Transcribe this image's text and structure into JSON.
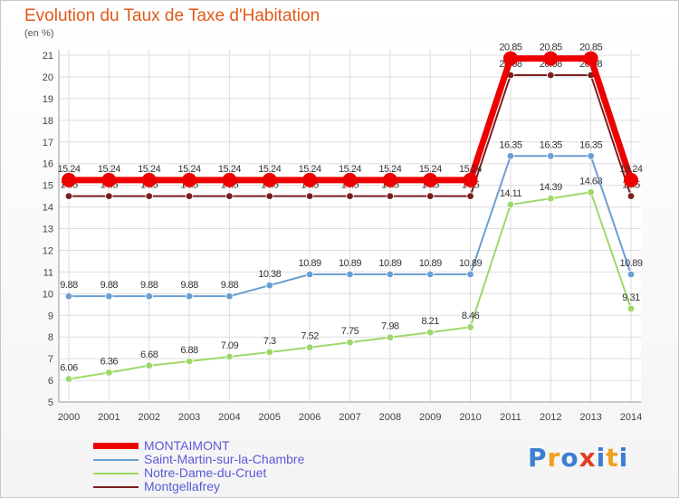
{
  "chart_data": {
    "type": "line",
    "title": "Evolution du Taux de Taxe d'Habitation",
    "unit_label": "(en %)",
    "x": [
      "2000",
      "2001",
      "2002",
      "2003",
      "2004",
      "2005",
      "2006",
      "2007",
      "2008",
      "2009",
      "2010",
      "2011",
      "2012",
      "2013",
      "2014"
    ],
    "ylim": [
      5,
      21
    ],
    "yticks": [
      5,
      6,
      7,
      8,
      9,
      10,
      11,
      12,
      13,
      14,
      15,
      16,
      17,
      18,
      19,
      20,
      21
    ],
    "grid": true,
    "legend_position": "bottom-left",
    "series": [
      {
        "name": "Montgellafrey",
        "color": "#7a1e1e",
        "values": [
          14.5,
          14.5,
          14.5,
          14.5,
          14.5,
          14.5,
          14.5,
          14.5,
          14.5,
          14.5,
          14.5,
          20.08,
          20.08,
          20.08,
          14.5
        ],
        "labels": [
          "14.5",
          "14.5",
          "14.5",
          "14.5",
          "14.5",
          "14.5",
          "14.5",
          "14.5",
          "14.5",
          "14.5",
          "14.5",
          "20.08",
          "20.08",
          "20.08",
          "14.5"
        ]
      },
      {
        "name": "Notre-Dame-du-Cruet",
        "color": "#9ed86a",
        "values": [
          6.06,
          6.36,
          6.68,
          6.88,
          7.09,
          7.3,
          7.52,
          7.75,
          7.98,
          8.21,
          8.46,
          14.11,
          14.39,
          14.68,
          9.31
        ],
        "labels": [
          "6.06",
          "6.36",
          "6.68",
          "6.88",
          "7.09",
          "7.3",
          "7.52",
          "7.75",
          "7.98",
          "8.21",
          "8.46",
          "14.11",
          "14.39",
          "14.68",
          "9.31"
        ]
      },
      {
        "name": "Saint-Martin-sur-la-Chambre",
        "color": "#6a9fd4",
        "values": [
          9.88,
          9.88,
          9.88,
          9.88,
          9.88,
          10.38,
          10.89,
          10.89,
          10.89,
          10.89,
          10.89,
          16.35,
          16.35,
          16.35,
          10.89
        ],
        "labels": [
          "9.88",
          "9.88",
          "9.88",
          "9.88",
          "9.88",
          "10.38",
          "10.89",
          "10.89",
          "10.89",
          "10.89",
          "10.89",
          "16.35",
          "16.35",
          "16.35",
          "10.89"
        ]
      },
      {
        "name": "MONTAIMONT",
        "color": "#ee0000",
        "values": [
          15.24,
          15.24,
          15.24,
          15.24,
          15.24,
          15.24,
          15.24,
          15.24,
          15.24,
          15.24,
          15.24,
          20.85,
          20.85,
          20.85,
          15.24
        ],
        "labels": [
          "15.24",
          "15.24",
          "15.24",
          "15.24",
          "15.24",
          "15.24",
          "15.24",
          "15.24",
          "15.24",
          "15.24",
          "15.24",
          "20.85",
          "20.85",
          "20.85",
          "15.24"
        ]
      }
    ],
    "legend": [
      {
        "name": "MONTAIMONT",
        "color": "#ee0000"
      },
      {
        "name": "Saint-Martin-sur-la-Chambre",
        "color": "#6a9fd4"
      },
      {
        "name": "Notre-Dame-du-Cruet",
        "color": "#9ed86a"
      },
      {
        "name": "Montgellafrey",
        "color": "#7a1e1e"
      }
    ]
  },
  "logo": {
    "letters": [
      "P",
      "r",
      "o",
      "x",
      "i",
      "t",
      "i"
    ],
    "colors": [
      "#3a7fd0",
      "#f0a020",
      "#3a7fd0",
      "#e04020",
      "#3a7fd0",
      "#f0a020",
      "#3a7fd0"
    ]
  }
}
